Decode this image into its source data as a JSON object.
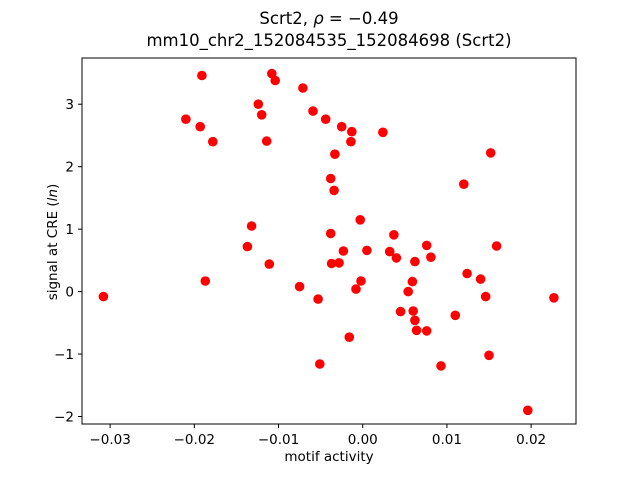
{
  "figure": {
    "title_line1": {
      "prefix": "Scrt2, ",
      "italic": "ρ",
      "suffix": " = −0.49"
    },
    "title_line2": "mm10_chr2_152084535_152084698 (Scrt2)",
    "xlabel": "motif activity",
    "ylabel": {
      "prefix": "signal at CRE (",
      "italic": "ln",
      "suffix": ")"
    }
  },
  "chart_data": {
    "type": "scatter",
    "title": "Scrt2, ρ = −0.49",
    "subtitle": "mm10_chr2_152084535_152084698 (Scrt2)",
    "xlabel": "motif activity",
    "ylabel": "signal at CRE (ln)",
    "marker": "circle",
    "marker_color": "#ff0000",
    "grid": false,
    "legend_position": "none",
    "xlim": [
      -0.03334,
      0.02533
    ],
    "ylim": [
      -2.12,
      3.74
    ],
    "x_ticks": [
      -0.03,
      -0.02,
      -0.01,
      0.0,
      0.01,
      0.02
    ],
    "x_tick_labels": [
      "−0.03",
      "−0.02",
      "−0.01",
      "0.00",
      "0.01",
      "0.02"
    ],
    "y_ticks": [
      -2,
      -1,
      0,
      1,
      2,
      3
    ],
    "y_tick_labels": [
      "−2",
      "−1",
      "0",
      "1",
      "2",
      "3"
    ],
    "points": [
      [
        -0.0191,
        3.46
      ],
      [
        -0.021,
        2.76
      ],
      [
        -0.0193,
        2.64
      ],
      [
        -0.0178,
        2.4
      ],
      [
        -0.0108,
        3.49
      ],
      [
        -0.0104,
        3.38
      ],
      [
        -0.0071,
        3.26
      ],
      [
        -0.0124,
        3.0
      ],
      [
        -0.012,
        2.83
      ],
      [
        -0.0059,
        2.89
      ],
      [
        -0.0044,
        2.76
      ],
      [
        -0.0025,
        2.64
      ],
      [
        -0.0013,
        2.56
      ],
      [
        -0.0014,
        2.4
      ],
      [
        0.0024,
        2.55
      ],
      [
        -0.0114,
        2.41
      ],
      [
        -0.0033,
        2.2
      ],
      [
        -0.0038,
        1.81
      ],
      [
        -0.0034,
        1.62
      ],
      [
        -0.0003,
        1.15
      ],
      [
        -0.0132,
        1.05
      ],
      [
        -0.0038,
        0.93
      ],
      [
        0.0037,
        0.91
      ],
      [
        0.0152,
        2.22
      ],
      [
        0.012,
        1.72
      ],
      [
        -0.0308,
        -0.08
      ],
      [
        -0.0187,
        0.17
      ],
      [
        -0.0137,
        0.72
      ],
      [
        -0.0111,
        0.44
      ],
      [
        -0.0023,
        0.65
      ],
      [
        0.0005,
        0.66
      ],
      [
        -0.0075,
        0.08
      ],
      [
        -0.0053,
        -0.12
      ],
      [
        -0.0002,
        0.17
      ],
      [
        -0.0008,
        0.04
      ],
      [
        -0.0016,
        -0.73
      ],
      [
        -0.0051,
        -1.16
      ],
      [
        0.0032,
        0.64
      ],
      [
        0.004,
        0.54
      ],
      [
        0.0062,
        0.48
      ],
      [
        0.0076,
        0.74
      ],
      [
        0.0081,
        0.55
      ],
      [
        0.0059,
        0.16
      ],
      [
        0.0054,
        0.0
      ],
      [
        0.0045,
        -0.32
      ],
      [
        0.006,
        -0.31
      ],
      [
        0.0062,
        -0.46
      ],
      [
        0.0064,
        -0.62
      ],
      [
        0.0076,
        -0.63
      ],
      [
        0.0159,
        0.73
      ],
      [
        0.0124,
        0.29
      ],
      [
        0.014,
        0.2
      ],
      [
        0.0146,
        -0.08
      ],
      [
        0.0227,
        -0.1
      ],
      [
        0.011,
        -0.38
      ],
      [
        0.015,
        -1.02
      ],
      [
        0.0093,
        -1.19
      ],
      [
        0.0196,
        -1.9
      ],
      [
        -0.0037,
        0.45
      ],
      [
        -0.0028,
        0.46
      ]
    ]
  }
}
